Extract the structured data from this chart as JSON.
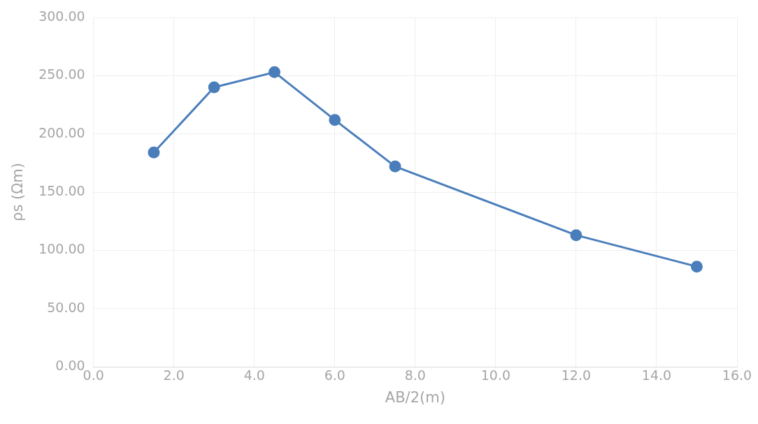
{
  "chart_data": {
    "type": "line",
    "xlabel": "AB/2(m)",
    "ylabel": "ρs (Ωm)",
    "x": [
      1.5,
      3,
      4.5,
      6,
      7.5,
      12,
      15
    ],
    "series": [
      {
        "color": "#4a7ebb",
        "values": [
          184,
          240,
          253,
          212,
          172,
          113,
          86
        ]
      }
    ],
    "xlim": [
      0,
      16
    ],
    "xticks": [
      {
        "value": 0,
        "label": "0.0"
      },
      {
        "value": 2,
        "label": "2.0"
      },
      {
        "value": 4,
        "label": "4.0"
      },
      {
        "value": 6,
        "label": "6.0"
      },
      {
        "value": 8,
        "label": "8.0"
      },
      {
        "value": 10,
        "label": "10.0"
      },
      {
        "value": 12,
        "label": "12.0"
      },
      {
        "value": 14,
        "label": "14.0"
      },
      {
        "value": 16,
        "label": "16.0"
      }
    ],
    "ylim": [
      0,
      300
    ],
    "yticks": [
      {
        "value": 0,
        "label": "0.00"
      },
      {
        "value": 50,
        "label": "50.00"
      },
      {
        "value": 100,
        "label": "100.00"
      },
      {
        "value": 150,
        "label": "150.00"
      },
      {
        "value": 200,
        "label": "200.00"
      },
      {
        "value": 250,
        "label": "250.00"
      },
      {
        "value": 300,
        "label": "300.00"
      }
    ],
    "grid": true,
    "marker": "circle",
    "line_style": "solid"
  }
}
